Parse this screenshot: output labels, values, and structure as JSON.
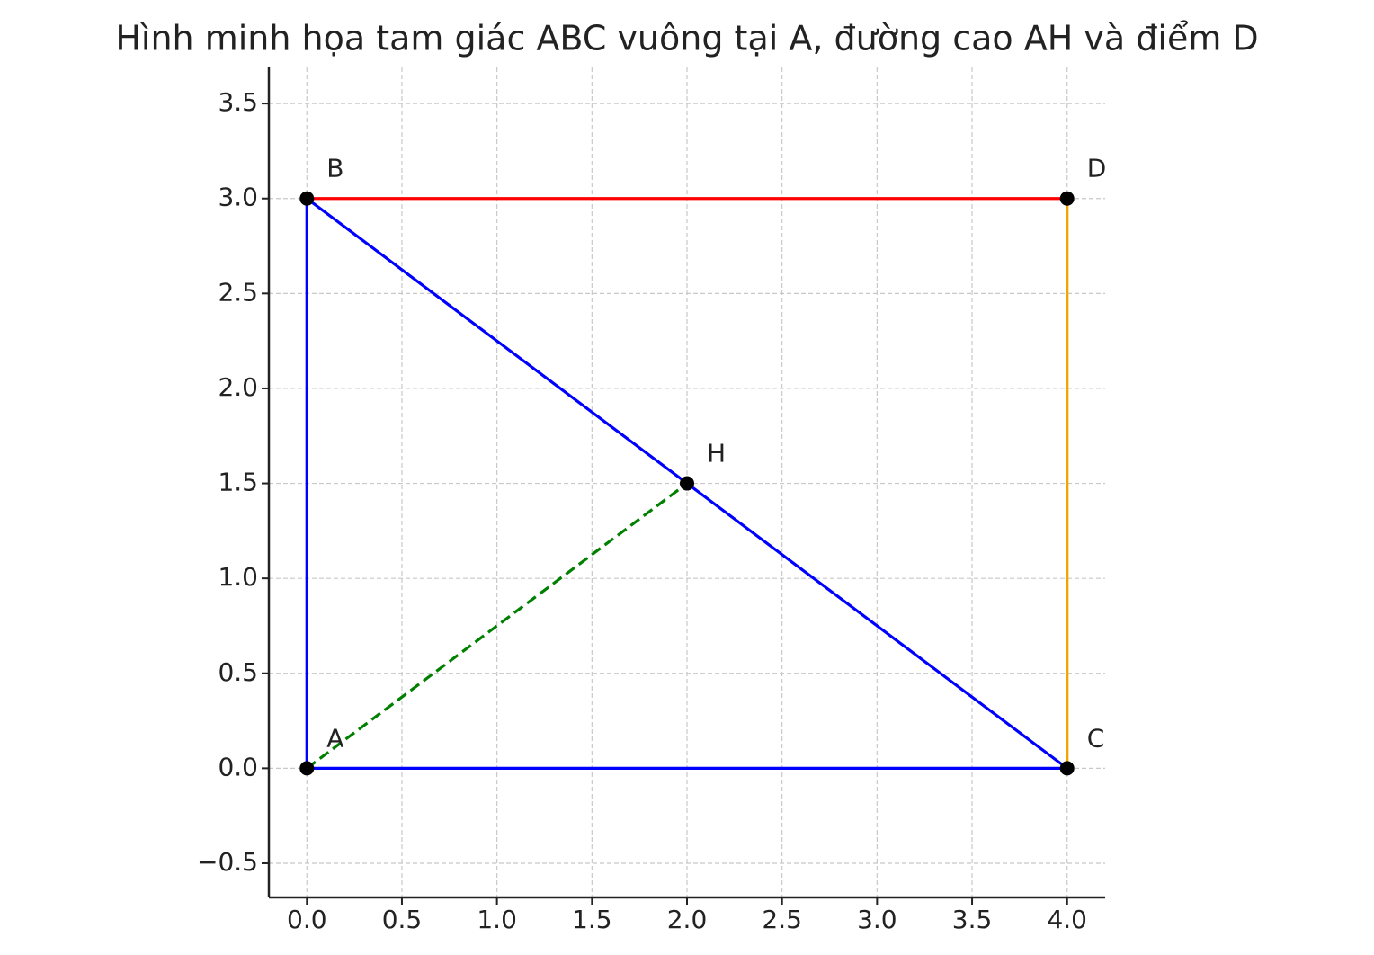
{
  "chart_data": {
    "type": "line",
    "title": "Hình minh họa tam giác ABC vuông tại A, đường cao AH và điểm D",
    "xlim": [
      -0.2,
      4.2
    ],
    "ylim": [
      -0.68,
      3.69
    ],
    "xticks": [
      {
        "value": 0,
        "label": "0.0"
      },
      {
        "value": 0.5,
        "label": "0.5"
      },
      {
        "value": 1,
        "label": "1.0"
      },
      {
        "value": 1.5,
        "label": "1.5"
      },
      {
        "value": 2,
        "label": "2.0"
      },
      {
        "value": 2.5,
        "label": "2.5"
      },
      {
        "value": 3,
        "label": "3.0"
      },
      {
        "value": 3.5,
        "label": "3.5"
      },
      {
        "value": 4,
        "label": "4.0"
      }
    ],
    "yticks": [
      {
        "value": -0.5,
        "label": "−0.5"
      },
      {
        "value": 0,
        "label": "0.0"
      },
      {
        "value": 0.5,
        "label": "0.5"
      },
      {
        "value": 1,
        "label": "1.0"
      },
      {
        "value": 1.5,
        "label": "1.5"
      },
      {
        "value": 2,
        "label": "2.0"
      },
      {
        "value": 2.5,
        "label": "2.5"
      },
      {
        "value": 3,
        "label": "3.0"
      },
      {
        "value": 3.5,
        "label": "3.5"
      }
    ],
    "grid": true,
    "segments": [
      {
        "color": "#0000ff",
        "dashed": false,
        "x": [
          0,
          0
        ],
        "y": [
          0,
          3
        ]
      },
      {
        "color": "#0000ff",
        "dashed": false,
        "x": [
          0,
          4
        ],
        "y": [
          0,
          0
        ]
      },
      {
        "color": "#0000ff",
        "dashed": false,
        "x": [
          0,
          4
        ],
        "y": [
          3,
          0
        ]
      },
      {
        "color": "#008000",
        "dashed": true,
        "x": [
          0,
          2
        ],
        "y": [
          0,
          1.5
        ]
      },
      {
        "color": "#ff0000",
        "dashed": false,
        "x": [
          0,
          4
        ],
        "y": [
          3,
          3
        ]
      },
      {
        "color": "#f0a500",
        "dashed": false,
        "x": [
          4,
          4
        ],
        "y": [
          0,
          3
        ]
      }
    ],
    "points": {
      "color": "#000000",
      "labels": [
        "A",
        "B",
        "C",
        "H",
        "D"
      ],
      "x": [
        0,
        0,
        4,
        2,
        4
      ],
      "y": [
        0,
        3,
        0,
        1.5,
        3
      ]
    }
  }
}
